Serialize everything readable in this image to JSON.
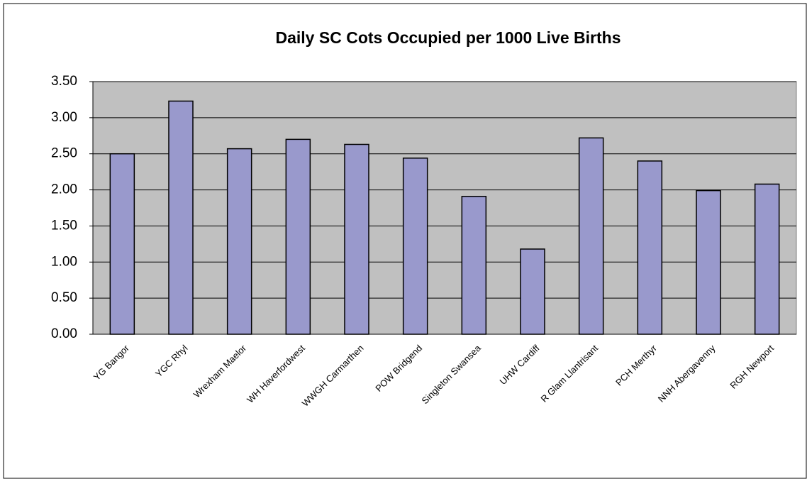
{
  "chart_data": {
    "type": "bar",
    "title": "Daily SC Cots Occupied per 1000 Live Births",
    "categories": [
      "YG Bangor",
      "YGC Rhyl",
      "Wrexham Maelor",
      "WH Haverfordwest",
      "WWGH Carmarthen",
      "POW Bridgend",
      "Singleton Swansea",
      "UHW Cardiff",
      "R Glam Llantrisant",
      "PCH Merthyr",
      "NNH Abergavenny",
      "RGH Newport"
    ],
    "values": [
      2.5,
      3.23,
      2.57,
      2.7,
      2.63,
      2.44,
      1.91,
      1.18,
      2.72,
      2.4,
      1.99,
      2.08
    ],
    "color": "#9999cc",
    "ylim": [
      0,
      3.5
    ],
    "yticks": [
      {
        "value": 0,
        "label": "0.00"
      },
      {
        "value": 0.5,
        "label": "0.50"
      },
      {
        "value": 1,
        "label": "1.00"
      },
      {
        "value": 1.5,
        "label": "1.50"
      },
      {
        "value": 2,
        "label": "2.00"
      },
      {
        "value": 2.5,
        "label": "2.50"
      },
      {
        "value": 3,
        "label": "3.00"
      },
      {
        "value": 3.5,
        "label": "3.50"
      }
    ],
    "grid": true
  }
}
